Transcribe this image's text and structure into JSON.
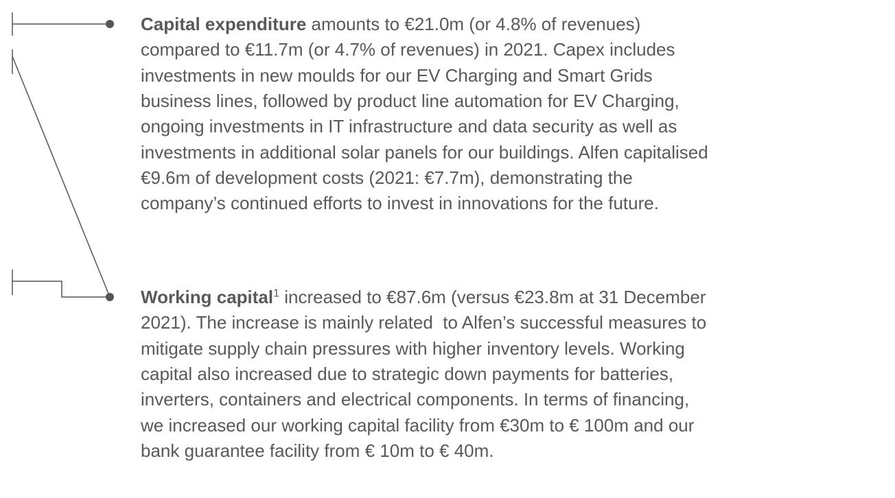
{
  "bullets": [
    {
      "bold": "Capital expenditure",
      "lines": [
        " amounts to €21.0m (or 4.8% of revenues)",
        "compared to €11.7m (or 4.7% of revenues) in 2021. Capex includes",
        "investments in new moulds for our EV Charging and Smart Grids",
        "business lines, followed by product line automation for EV Charging,",
        "ongoing investments in IT infrastructure and data security as well as",
        "investments in additional solar panels for our buildings. Alfen capitalised",
        "€9.6m of development costs (2021: €7.7m), demonstrating the",
        "company’s continued efforts to invest in innovations for the future."
      ]
    },
    {
      "bold": "Working capital",
      "sup": "1",
      "lines": [
        " increased to €87.6m (versus €23.8m at 31 December",
        "2021). The increase is mainly related  to Alfen’s successful measures to",
        "mitigate supply chain pressures with higher inventory levels. Working",
        "capital also increased due to strategic down payments for batteries,",
        "inverters, containers and electrical components. In terms of financing,",
        "we increased our working capital facility from €30m to € 100m and our",
        "bank guarantee facility from € 10m to € 40m."
      ]
    }
  ]
}
